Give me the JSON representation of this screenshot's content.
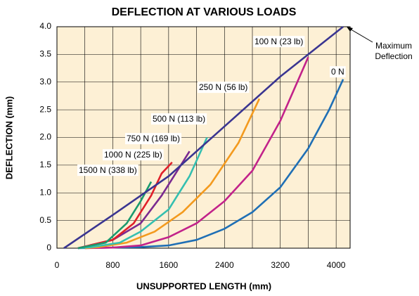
{
  "chart_data": {
    "type": "line",
    "title": "DEFLECTION AT VARIOUS LOADS",
    "xlabel": "UNSUPPORTED LENGTH (mm)",
    "ylabel": "DEFLECTION (mm)",
    "xlim": [
      0,
      4200
    ],
    "ylim": [
      0,
      4
    ],
    "xticks": [
      0,
      800,
      1600,
      2400,
      3200,
      4000
    ],
    "x_minor_ticks": [
      400,
      1200,
      2000,
      2800,
      3600
    ],
    "yticks": [
      0,
      {
        "value": 0.5,
        "label": "0.5"
      },
      {
        "value": 1,
        "label": "1.0"
      },
      {
        "value": 1.5,
        "label": "1.5"
      },
      {
        "value": 2,
        "label": "2.0"
      },
      {
        "value": 2.5,
        "label": "2.5"
      },
      {
        "value": 3,
        "label": "3.0"
      },
      {
        "value": 3.5,
        "label": "3.5"
      },
      {
        "value": 4,
        "label": "4.0"
      }
    ],
    "grid": true,
    "annotation": [
      "Maximum",
      "Deflection"
    ],
    "series": [
      {
        "name": "0 N",
        "color": "#1f6fb5",
        "x": [
          300,
          1200,
          1600,
          2000,
          2400,
          2800,
          3200,
          3600,
          3900,
          4100
        ],
        "values": [
          0,
          0.02,
          0.05,
          0.15,
          0.35,
          0.65,
          1.1,
          1.8,
          2.5,
          3.05
        ]
      },
      {
        "name": "100 N (23 lb)",
        "color": "#c2228a",
        "x": [
          400,
          800,
          1200,
          1600,
          2000,
          2400,
          2800,
          3200,
          3600
        ],
        "values": [
          0,
          0.01,
          0.05,
          0.2,
          0.45,
          0.85,
          1.4,
          2.3,
          3.45
        ]
      },
      {
        "name": "250 N (56 lb)",
        "color": "#f39a1e",
        "x": [
          400,
          600,
          1000,
          1400,
          1800,
          2200,
          2600,
          2900
        ],
        "values": [
          0,
          0.02,
          0.1,
          0.3,
          0.65,
          1.15,
          1.9,
          2.7
        ]
      },
      {
        "name": "500 N (113 lb)",
        "color": "#34bfb0",
        "x": [
          300,
          500,
          900,
          1200,
          1600,
          1900,
          2150
        ],
        "values": [
          0,
          0.02,
          0.1,
          0.3,
          0.7,
          1.3,
          2.0
        ]
      },
      {
        "name": "750 N (169 lb)",
        "color": "#7a2a90",
        "x": [
          300,
          800,
          1200,
          1500,
          1700,
          1900
        ],
        "values": [
          0,
          0.15,
          0.45,
          0.95,
          1.35,
          1.75
        ]
      },
      {
        "name": "1000 N (225 lb)",
        "color": "#e0202a",
        "x": [
          300,
          800,
          1100,
          1350,
          1500,
          1650
        ],
        "values": [
          0,
          0.15,
          0.45,
          0.95,
          1.35,
          1.55
        ]
      },
      {
        "name": "1500 N (338 lb)",
        "color": "#1a9a6e",
        "x": [
          300,
          700,
          1000,
          1200,
          1350
        ],
        "values": [
          0,
          0.1,
          0.45,
          0.85,
          1.2
        ]
      },
      {
        "color": "#3a3591",
        "x": [
          100,
          800,
          1600,
          2400,
          3200,
          4100
        ],
        "values": [
          0,
          0.6,
          1.3,
          2.2,
          3.1,
          4.0
        ]
      }
    ]
  }
}
